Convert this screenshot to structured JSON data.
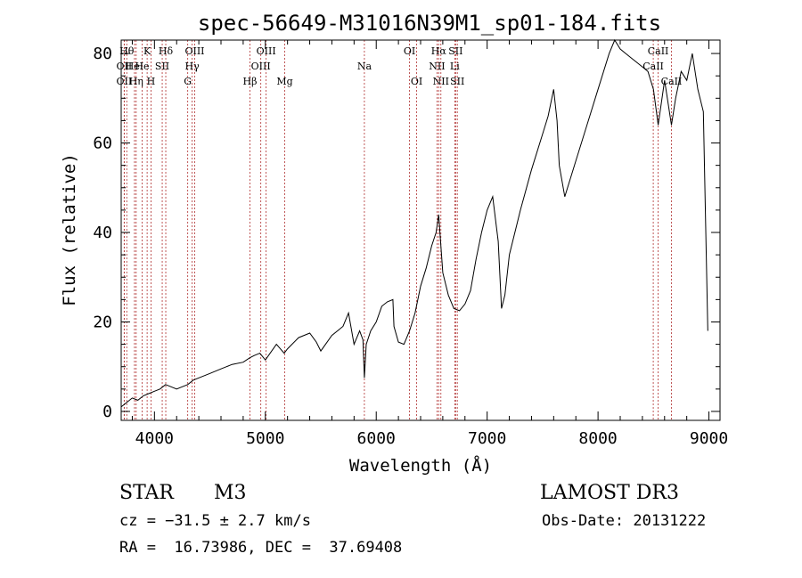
{
  "chart_data": {
    "type": "line",
    "title": "spec-56649-M31016N39M1_sp01-184.fits",
    "xlabel": "Wavelength (Å)",
    "ylabel": "Flux (relative)",
    "xlim": [
      3700,
      9100
    ],
    "ylim": [
      -2,
      83
    ],
    "x_ticks": [
      4000,
      5000,
      6000,
      7000,
      8000,
      9000
    ],
    "x_tick_labels": [
      "4000",
      "5000",
      "6000",
      "7000",
      "8000",
      "9000"
    ],
    "y_ticks": [
      0,
      20,
      40,
      60,
      80
    ],
    "y_tick_labels": [
      "0",
      "20",
      "40",
      "60",
      "80"
    ],
    "grid": false,
    "series": [
      {
        "name": "flux",
        "x": [
          3700,
          3750,
          3800,
          3850,
          3900,
          3950,
          4000,
          4050,
          4100,
          4150,
          4200,
          4250,
          4300,
          4350,
          4400,
          4500,
          4600,
          4700,
          4800,
          4860,
          4900,
          4950,
          5000,
          5100,
          5170,
          5200,
          5300,
          5400,
          5460,
          5500,
          5600,
          5700,
          5750,
          5800,
          5850,
          5880,
          5893,
          5910,
          5950,
          6000,
          6050,
          6100,
          6150,
          6160,
          6200,
          6250,
          6300,
          6350,
          6400,
          6450,
          6500,
          6540,
          6563,
          6580,
          6600,
          6650,
          6700,
          6750,
          6800,
          6850,
          6900,
          6950,
          7000,
          7050,
          7100,
          7130,
          7160,
          7200,
          7300,
          7400,
          7500,
          7550,
          7600,
          7630,
          7650,
          7700,
          7800,
          7900,
          8000,
          8100,
          8150,
          8200,
          8250,
          8300,
          8350,
          8400,
          8450,
          8500,
          8542,
          8600,
          8662,
          8700,
          8750,
          8800,
          8850,
          8900,
          8950,
          8990
        ],
        "y": [
          1,
          2,
          3,
          2.5,
          3.5,
          4,
          4.5,
          5,
          6,
          5.5,
          5,
          5.5,
          6,
          7,
          7.5,
          8.5,
          9.5,
          10.5,
          11,
          12,
          12.5,
          13,
          11.5,
          15,
          13,
          14,
          16.5,
          17.5,
          15.5,
          13.5,
          17,
          19,
          22,
          15,
          18,
          16,
          7.5,
          15,
          18,
          20,
          23.5,
          24.5,
          25,
          19,
          15.5,
          15,
          18,
          22,
          28,
          32,
          37,
          40,
          44,
          38,
          31,
          26,
          23,
          22.5,
          24,
          27,
          34,
          40,
          45,
          48,
          38,
          23,
          26,
          35,
          45,
          54,
          62,
          66,
          72,
          65,
          55,
          48,
          56,
          64,
          72,
          80,
          83,
          81,
          80,
          79,
          78,
          77,
          76,
          72,
          64,
          74,
          64,
          70,
          76,
          74,
          80,
          72,
          67,
          18
        ]
      }
    ],
    "lines": [
      {
        "x": 3750,
        "label": "Hθ",
        "row": 1
      },
      {
        "x": 3727,
        "label": "OII",
        "row": 2
      },
      {
        "x": 3727,
        "label": "OII",
        "row": 3
      },
      {
        "x": 3820,
        "label": "HeI",
        "row": 2
      },
      {
        "x": 3835,
        "label": "Hη",
        "row": 3
      },
      {
        "x": 3889,
        "label": "He",
        "row": 2
      },
      {
        "x": 3934,
        "label": "K",
        "row": 1
      },
      {
        "x": 3969,
        "label": "H",
        "row": 3
      },
      {
        "x": 4070,
        "label": "SII",
        "row": 2
      },
      {
        "x": 4102,
        "label": "Hδ",
        "row": 1
      },
      {
        "x": 4300,
        "label": "G",
        "row": 3
      },
      {
        "x": 4340,
        "label": "Hγ",
        "row": 2
      },
      {
        "x": 4363,
        "label": "OIII",
        "row": 1
      },
      {
        "x": 4861,
        "label": "Hβ",
        "row": 3
      },
      {
        "x": 4959,
        "label": "OIII",
        "row": 2
      },
      {
        "x": 5007,
        "label": "OIII",
        "row": 1
      },
      {
        "x": 5175,
        "label": "Mg",
        "row": 3
      },
      {
        "x": 5893,
        "label": "Na",
        "row": 2
      },
      {
        "x": 6300,
        "label": "OI",
        "row": 1
      },
      {
        "x": 6364,
        "label": "OI",
        "row": 3
      },
      {
        "x": 6548,
        "label": "NII",
        "row": 2
      },
      {
        "x": 6563,
        "label": "Hα",
        "row": 1
      },
      {
        "x": 6583,
        "label": "NII",
        "row": 3
      },
      {
        "x": 6708,
        "label": "Li",
        "row": 2
      },
      {
        "x": 6716,
        "label": "SII",
        "row": 1
      },
      {
        "x": 6731,
        "label": "SII",
        "row": 3
      },
      {
        "x": 8498,
        "label": "CaII",
        "row": 2
      },
      {
        "x": 8542,
        "label": "CaII",
        "row": 1
      },
      {
        "x": 8662,
        "label": "CaII",
        "row": 3
      }
    ]
  },
  "info": {
    "class_label": "STAR",
    "subclass_label": "M3",
    "survey": "LAMOST DR3",
    "cz": "cz = −31.5 ± 2.7 km/s",
    "obs_date": "Obs-Date: 20131222",
    "coords": "RA =  16.73986, DEC =  37.69408"
  },
  "colors": {
    "line": "#000000",
    "marker": "#b03030",
    "axis": "#000000"
  }
}
